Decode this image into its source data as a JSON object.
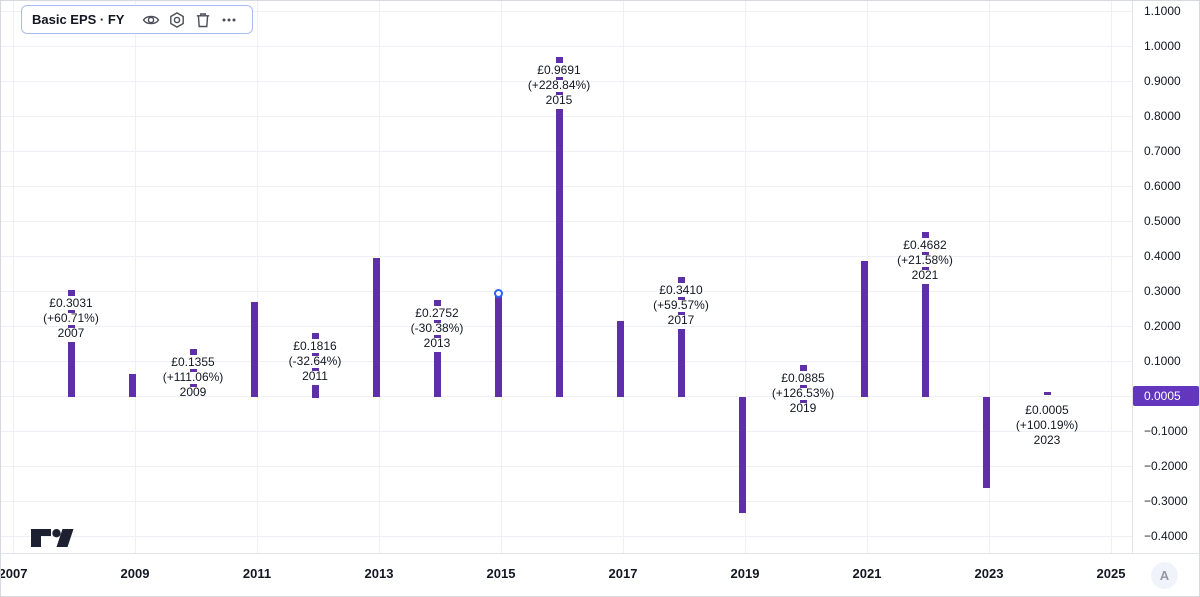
{
  "legend": {
    "title": "Basic EPS · FY",
    "icons": [
      {
        "name": "eye-icon",
        "meaning": "toggle visibility"
      },
      {
        "name": "settings-icon",
        "meaning": "indicator settings"
      },
      {
        "name": "delete-icon",
        "meaning": "remove indicator"
      },
      {
        "name": "more-options-icon",
        "meaning": "more actions"
      }
    ]
  },
  "chart_data": {
    "type": "bar",
    "title": "Basic EPS · FY",
    "currency": "£",
    "ylabel": "",
    "xlabel": "",
    "ylim": [
      -0.45,
      1.12
    ],
    "grid": true,
    "series": [
      {
        "year": 2007,
        "value": 0.3031,
        "label": {
          "value": "£0.3031",
          "change": "(+60.71%)",
          "year": "2007"
        }
      },
      {
        "year": 2008,
        "value": 0.0642
      },
      {
        "year": 2009,
        "value": 0.1355,
        "label": {
          "value": "£0.1355",
          "change": "(+111.06%)",
          "year": "2009"
        }
      },
      {
        "year": 2010,
        "value": 0.2696
      },
      {
        "year": 2011,
        "value": 0.1816,
        "label": {
          "value": "£0.1816",
          "change": "(-32.64%)",
          "year": "2011"
        }
      },
      {
        "year": 2012,
        "value": 0.3953
      },
      {
        "year": 2013,
        "value": 0.2752,
        "label": {
          "value": "£0.2752",
          "change": "(-30.38%)",
          "year": "2013"
        }
      },
      {
        "year": 2014,
        "value": 0.2947,
        "marker": "circle"
      },
      {
        "year": 2015,
        "value": 0.9691,
        "label": {
          "value": "£0.9691",
          "change": "(+228.84%)",
          "year": "2015"
        }
      },
      {
        "year": 2016,
        "value": 0.2137
      },
      {
        "year": 2017,
        "value": 0.341,
        "label": {
          "value": "£0.3410",
          "change": "(+59.57%)",
          "year": "2017"
        }
      },
      {
        "year": 2018,
        "value": -0.3336
      },
      {
        "year": 2019,
        "value": 0.0885,
        "label": {
          "value": "£0.0885",
          "change": "(+126.53%)",
          "year": "2019"
        }
      },
      {
        "year": 2020,
        "value": 0.3851
      },
      {
        "year": 2021,
        "value": 0.4682,
        "label": {
          "value": "£0.4682",
          "change": "(+21.58%)",
          "year": "2021"
        }
      },
      {
        "year": 2022,
        "value": -0.2632
      },
      {
        "year": 2023,
        "value": 0.0005,
        "label": {
          "value": "£0.0005",
          "change": "(+100.19%)",
          "year": "2023"
        }
      }
    ],
    "y_axis": {
      "ticks": [
        {
          "label": "1.1000",
          "value": 1.1
        },
        {
          "label": "1.0000",
          "value": 1.0
        },
        {
          "label": "0.9000",
          "value": 0.9
        },
        {
          "label": "0.8000",
          "value": 0.8
        },
        {
          "label": "0.7000",
          "value": 0.7
        },
        {
          "label": "0.6000",
          "value": 0.6
        },
        {
          "label": "0.5000",
          "value": 0.5
        },
        {
          "label": "0.4000",
          "value": 0.4
        },
        {
          "label": "0.3000",
          "value": 0.3
        },
        {
          "label": "0.2000",
          "value": 0.2
        },
        {
          "label": "0.1000",
          "value": 0.1
        },
        {
          "label": "−0.1000",
          "value": -0.1
        },
        {
          "label": "−0.2000",
          "value": -0.2
        },
        {
          "label": "−0.3000",
          "value": -0.3
        },
        {
          "label": "−0.4000",
          "value": -0.4
        }
      ],
      "badge": {
        "label": "0.0005",
        "value": 0.0005
      }
    },
    "x_axis": {
      "ticks": [
        {
          "label": "2007",
          "year": 2007
        },
        {
          "label": "2009",
          "year": 2009
        },
        {
          "label": "2011",
          "year": 2011
        },
        {
          "label": "2013",
          "year": 2013
        },
        {
          "label": "2015",
          "year": 2015
        },
        {
          "label": "2017",
          "year": 2017
        },
        {
          "label": "2019",
          "year": 2019
        },
        {
          "label": "2021",
          "year": 2021
        },
        {
          "label": "2023",
          "year": 2023
        },
        {
          "label": "2025",
          "year": 2025
        }
      ]
    },
    "legend_position": "top-left",
    "colors": {
      "bar": "#5e2fa8",
      "badge_bg": "#6236bd",
      "badge_text": "#ffffff",
      "marker_stroke": "#2962ff",
      "label_text": "#131722",
      "grid": "#eef0f5"
    }
  },
  "footer": {
    "a_button": "A"
  }
}
